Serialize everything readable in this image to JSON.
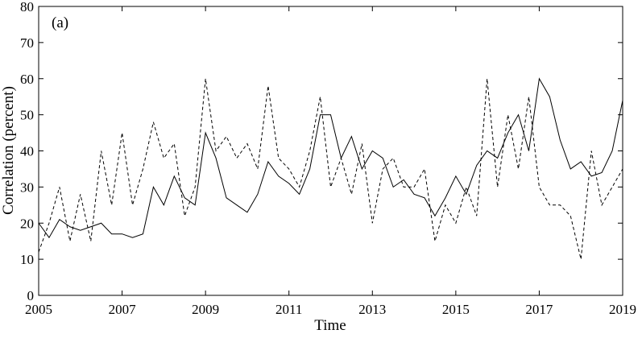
{
  "chart_data": {
    "type": "line",
    "annotation": "(a)",
    "xlabel": "Time",
    "ylabel": "Correlation (percent)",
    "xlim": [
      2005,
      2019
    ],
    "xticks": [
      2005,
      2007,
      2009,
      2011,
      2013,
      2015,
      2017,
      2019
    ],
    "ylim": [
      0,
      80
    ],
    "yticks": [
      0,
      10,
      20,
      30,
      40,
      50,
      60,
      70,
      80
    ],
    "x": [
      2005,
      2005.25,
      2005.5,
      2005.75,
      2006,
      2006.25,
      2006.5,
      2006.75,
      2007,
      2007.25,
      2007.5,
      2007.75,
      2008,
      2008.25,
      2008.5,
      2008.75,
      2009,
      2009.25,
      2009.5,
      2009.75,
      2010,
      2010.25,
      2010.5,
      2010.75,
      2011,
      2011.25,
      2011.5,
      2011.75,
      2012,
      2012.25,
      2012.5,
      2012.75,
      2013,
      2013.25,
      2013.5,
      2013.75,
      2014,
      2014.25,
      2014.5,
      2014.75,
      2015,
      2015.25,
      2015.5,
      2015.75,
      2016,
      2016.25,
      2016.5,
      2016.75,
      2017,
      2017.25,
      2017.5,
      2017.75,
      2018,
      2018.25,
      2018.5,
      2018.75,
      2019
    ],
    "series": [
      {
        "color": "#000000",
        "linestyle": "solid",
        "values": [
          20,
          16,
          21,
          19,
          18,
          19,
          20,
          17,
          17,
          16,
          17,
          30,
          25,
          33,
          27,
          25,
          45,
          38,
          27,
          25,
          23,
          28,
          37,
          33,
          31,
          28,
          35,
          50,
          50,
          38,
          44,
          35,
          40,
          38,
          30,
          32,
          28,
          27,
          22,
          27,
          33,
          28,
          36,
          40,
          38,
          45,
          50,
          40,
          60,
          55,
          43,
          35,
          37,
          33,
          34,
          40,
          54
        ]
      },
      {
        "color": "#000000",
        "linestyle": "dashed",
        "values": [
          12,
          20,
          30,
          15,
          28,
          15,
          40,
          25,
          45,
          25,
          35,
          48,
          38,
          42,
          22,
          30,
          60,
          40,
          44,
          38,
          42,
          35,
          58,
          38,
          35,
          30,
          40,
          55,
          30,
          38,
          28,
          42,
          20,
          35,
          38,
          30,
          30,
          35,
          15,
          25,
          20,
          30,
          22,
          60,
          30,
          50,
          35,
          55,
          30,
          25,
          25,
          22,
          10,
          40,
          25,
          30,
          35
        ]
      }
    ]
  }
}
